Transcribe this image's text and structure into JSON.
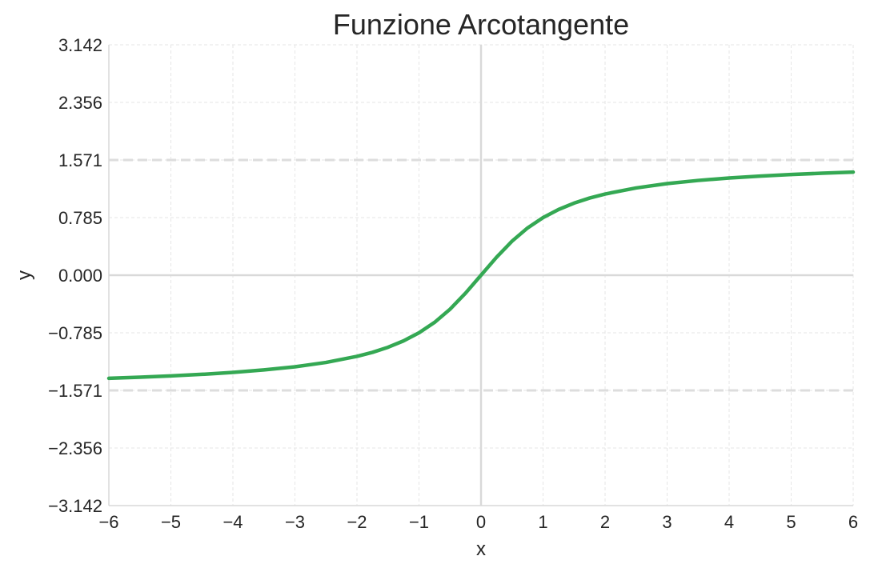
{
  "chart_data": {
    "type": "line",
    "title": "Funzione Arcotangente",
    "xlabel": "x",
    "ylabel": "y",
    "xlim": [
      -6,
      6
    ],
    "ylim": [
      -3.142,
      3.142
    ],
    "grid": true,
    "x_ticks": [
      {
        "value": -6,
        "label": "−6"
      },
      {
        "value": -5,
        "label": "−5"
      },
      {
        "value": -4,
        "label": "−4"
      },
      {
        "value": -3,
        "label": "−3"
      },
      {
        "value": -2,
        "label": "−2"
      },
      {
        "value": -1,
        "label": "−1"
      },
      {
        "value": 0,
        "label": "0"
      },
      {
        "value": 1,
        "label": "1"
      },
      {
        "value": 2,
        "label": "2"
      },
      {
        "value": 3,
        "label": "3"
      },
      {
        "value": 4,
        "label": "4"
      },
      {
        "value": 5,
        "label": "5"
      },
      {
        "value": 6,
        "label": "6"
      }
    ],
    "y_ticks": [
      {
        "value": 3.142,
        "label": "3.142"
      },
      {
        "value": 2.356,
        "label": "2.356"
      },
      {
        "value": 1.571,
        "label": "1.571"
      },
      {
        "value": 0.785,
        "label": "0.785"
      },
      {
        "value": 0.0,
        "label": "0.000"
      },
      {
        "value": -0.785,
        "label": "−0.785"
      },
      {
        "value": -1.571,
        "label": "−1.571"
      },
      {
        "value": -2.356,
        "label": "−2.356"
      },
      {
        "value": -3.142,
        "label": "−3.142"
      }
    ],
    "asymptotes": [
      1.571,
      -1.571
    ],
    "series": [
      {
        "color": "#34a853",
        "x": [
          -6,
          -5.5,
          -5,
          -4.5,
          -4,
          -3.5,
          -3,
          -2.5,
          -2,
          -1.75,
          -1.5,
          -1.25,
          -1,
          -0.75,
          -0.5,
          -0.25,
          0,
          0.25,
          0.5,
          0.75,
          1,
          1.25,
          1.5,
          1.75,
          2,
          2.5,
          3,
          3.5,
          4,
          4.5,
          5,
          5.5,
          6
        ],
        "y": [
          -1.406,
          -1.391,
          -1.373,
          -1.352,
          -1.326,
          -1.292,
          -1.249,
          -1.19,
          -1.107,
          -1.052,
          -0.983,
          -0.896,
          -0.785,
          -0.644,
          -0.464,
          -0.245,
          0.0,
          0.245,
          0.464,
          0.644,
          0.785,
          0.896,
          0.983,
          1.052,
          1.107,
          1.19,
          1.249,
          1.292,
          1.326,
          1.352,
          1.373,
          1.391,
          1.406
        ]
      }
    ],
    "colors": {
      "line": "#34a853",
      "grid": "#e6e6e6",
      "axis": "#d9d9d9",
      "asymptote": "#dddddd"
    }
  }
}
